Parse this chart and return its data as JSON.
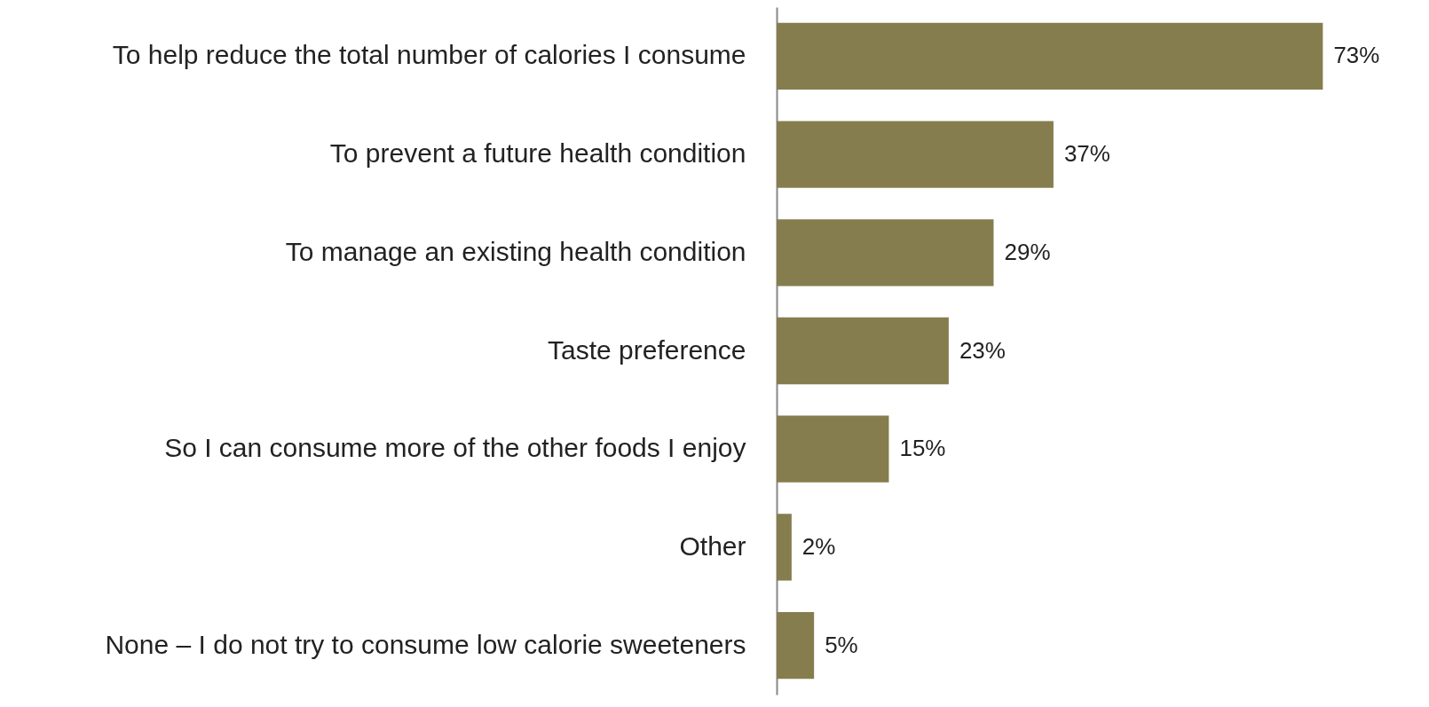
{
  "chart_data": {
    "type": "bar",
    "orientation": "horizontal",
    "categories": [
      "To help reduce the total number of calories I consume",
      "To prevent a future health condition",
      "To manage an existing health condition",
      "Taste preference",
      "So I can consume more of the other foods I enjoy",
      "Other",
      "None – I do not try to consume low calorie sweeteners"
    ],
    "values": [
      73,
      37,
      29,
      23,
      15,
      2,
      5
    ],
    "value_labels": [
      "73%",
      "37%",
      "29%",
      "23%",
      "15%",
      "2%",
      "5%"
    ],
    "color": "#857d4e"
  }
}
